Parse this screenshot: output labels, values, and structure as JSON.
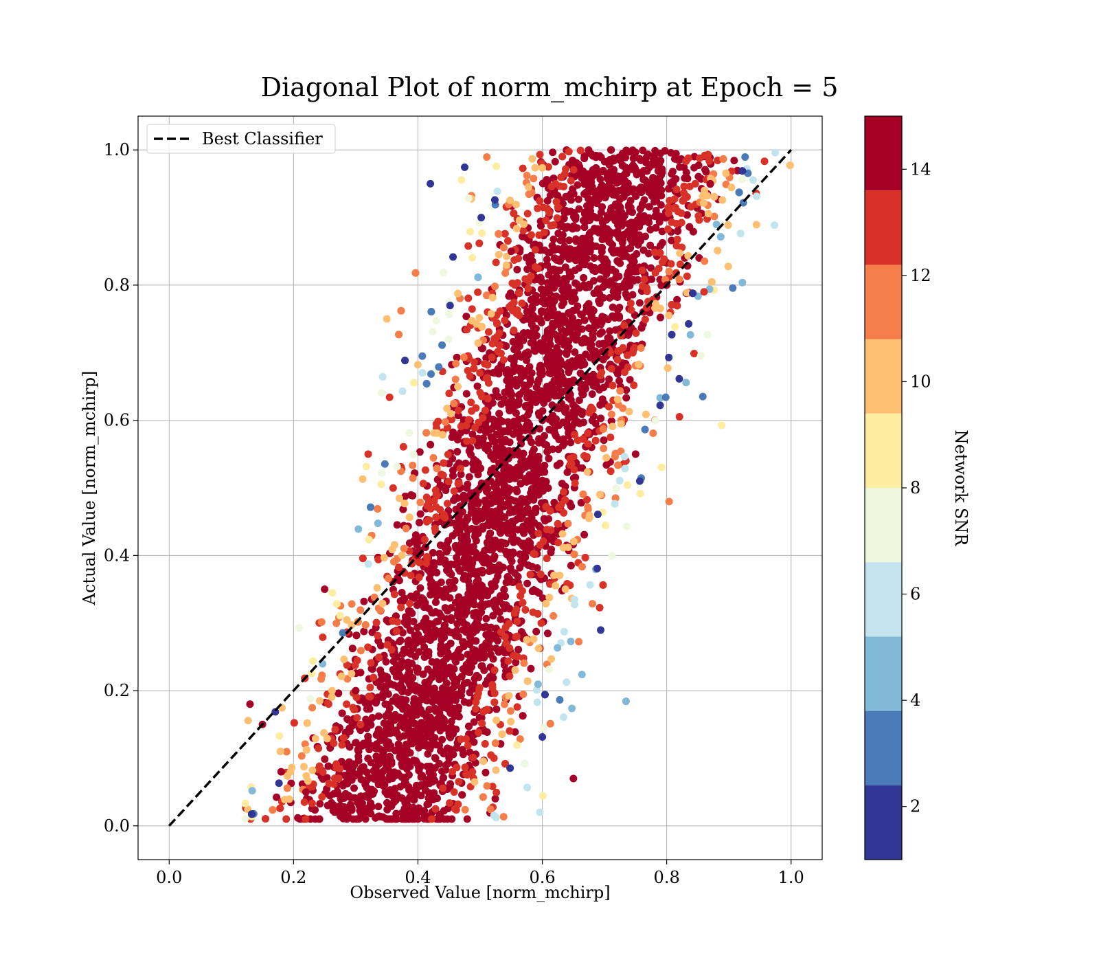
{
  "chart_data": {
    "type": "scatter",
    "title": "Diagonal Plot of norm_mchirp at Epoch = 5",
    "xlabel": "Observed Value [norm_mchirp]",
    "ylabel": "Actual Value [norm_mchirp]",
    "xlim": [
      -0.05,
      1.05
    ],
    "ylim": [
      -0.05,
      1.05
    ],
    "xticks": [
      "0.0",
      "0.2",
      "0.4",
      "0.6",
      "0.8",
      "1.0"
    ],
    "yticks": [
      "0.0",
      "0.2",
      "0.4",
      "0.6",
      "0.8",
      "1.0"
    ],
    "grid": true,
    "legend": {
      "placement": "upper-left",
      "entries": [
        {
          "label": "Best Classifier",
          "style": "dashed",
          "color": "#000000"
        }
      ]
    },
    "reference_line": {
      "name": "Best Classifier",
      "x": [
        0,
        1
      ],
      "y": [
        0,
        1
      ]
    },
    "colorbar": {
      "label": "Network SNR",
      "range": [
        1,
        15
      ],
      "ticks": [
        "2",
        "4",
        "6",
        "8",
        "10",
        "12",
        "14"
      ],
      "bins": [
        {
          "from": 1,
          "to": 2.4,
          "color": "#313695"
        },
        {
          "from": 2.4,
          "to": 3.8,
          "color": "#4a7ab7"
        },
        {
          "from": 3.8,
          "to": 5.2,
          "color": "#83b9d8"
        },
        {
          "from": 5.2,
          "to": 6.6,
          "color": "#c1e4ef"
        },
        {
          "from": 6.6,
          "to": 8.0,
          "color": "#edf8df"
        },
        {
          "from": 8.0,
          "to": 9.4,
          "color": "#feeda1"
        },
        {
          "from": 9.4,
          "to": 10.8,
          "color": "#fdbf71"
        },
        {
          "from": 10.8,
          "to": 12.2,
          "color": "#f57d4a"
        },
        {
          "from": 12.2,
          "to": 13.6,
          "color": "#d83128"
        },
        {
          "from": 13.6,
          "to": 15,
          "color": "#a50026"
        }
      ]
    },
    "scatter_summary": {
      "description_only": false,
      "point_color_key": "Network SNR",
      "sample_points": [
        {
          "x": 0.13,
          "y": 0.18,
          "snr": 14.5
        },
        {
          "x": 0.15,
          "y": 0.15,
          "snr": 14.5
        },
        {
          "x": 0.18,
          "y": 0.08,
          "snr": 14.5
        },
        {
          "x": 0.22,
          "y": 0.05,
          "snr": 14.5
        },
        {
          "x": 0.25,
          "y": 0.35,
          "snr": 14.5
        },
        {
          "x": 0.3,
          "y": 0.2,
          "snr": 14.5
        },
        {
          "x": 0.32,
          "y": 0.55,
          "snr": 12.5
        },
        {
          "x": 0.35,
          "y": 0.75,
          "snr": 10.5
        },
        {
          "x": 0.4,
          "y": 0.4,
          "snr": 14.5
        },
        {
          "x": 0.42,
          "y": 0.95,
          "snr": 2.0
        },
        {
          "x": 0.45,
          "y": 0.1,
          "snr": 14.5
        },
        {
          "x": 0.5,
          "y": 0.5,
          "snr": 14.5
        },
        {
          "x": 0.55,
          "y": 0.85,
          "snr": 14.5
        },
        {
          "x": 0.6,
          "y": 0.6,
          "snr": 14.5
        },
        {
          "x": 0.65,
          "y": 0.07,
          "snr": 14.5
        },
        {
          "x": 0.7,
          "y": 0.7,
          "snr": 14.5
        },
        {
          "x": 0.75,
          "y": 0.55,
          "snr": 14.5
        },
        {
          "x": 0.8,
          "y": 0.8,
          "snr": 14.5
        },
        {
          "x": 0.86,
          "y": 0.79,
          "snr": 12.5
        },
        {
          "x": 0.87,
          "y": 0.95,
          "snr": 14.5
        }
      ]
    }
  }
}
